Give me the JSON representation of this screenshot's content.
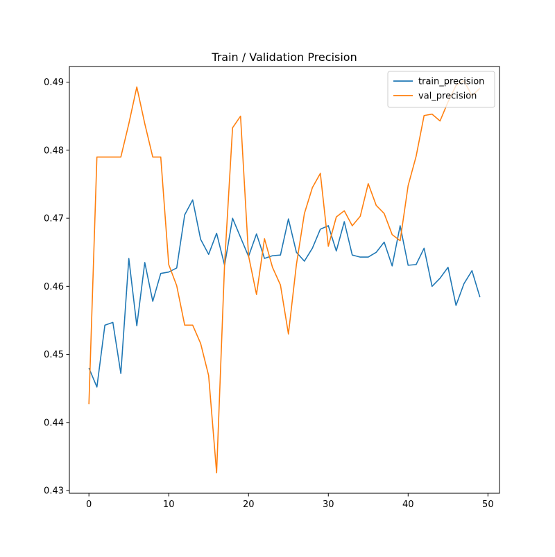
{
  "chart_data": {
    "type": "line",
    "title": "Train / Validation Precision",
    "xlabel": "",
    "ylabel": "",
    "xlim": [
      -2.45,
      51.45
    ],
    "ylim": [
      0.4296,
      0.4923
    ],
    "xticks": [
      0,
      10,
      20,
      30,
      40,
      50
    ],
    "xtick_labels": [
      "0",
      "10",
      "20",
      "30",
      "40",
      "50"
    ],
    "yticks": [
      0.43,
      0.44,
      0.45,
      0.46,
      0.47,
      0.48,
      0.49
    ],
    "ytick_labels": [
      "0.43",
      "0.44",
      "0.45",
      "0.46",
      "0.47",
      "0.48",
      "0.49"
    ],
    "grid": false,
    "legend_position": "upper right",
    "x": [
      0,
      1,
      2,
      3,
      4,
      5,
      6,
      7,
      8,
      9,
      10,
      11,
      12,
      13,
      14,
      15,
      16,
      17,
      18,
      19,
      20,
      21,
      22,
      23,
      24,
      25,
      26,
      27,
      28,
      29,
      30,
      31,
      32,
      33,
      34,
      35,
      36,
      37,
      38,
      39,
      40,
      41,
      42,
      43,
      44,
      45,
      46,
      47,
      48,
      49
    ],
    "series": [
      {
        "name": "train_precision",
        "color": "#1f77b4",
        "values": [
          0.448,
          0.4452,
          0.4543,
          0.4547,
          0.4472,
          0.4641,
          0.4542,
          0.4635,
          0.4578,
          0.4619,
          0.4621,
          0.4627,
          0.4705,
          0.4727,
          0.4669,
          0.4647,
          0.4678,
          0.4631,
          0.47,
          0.4672,
          0.4644,
          0.4677,
          0.4641,
          0.4645,
          0.4646,
          0.4699,
          0.465,
          0.4637,
          0.4656,
          0.4684,
          0.4689,
          0.4652,
          0.4695,
          0.4646,
          0.4643,
          0.4643,
          0.465,
          0.4665,
          0.463,
          0.4689,
          0.4631,
          0.4632,
          0.4656,
          0.46,
          0.4612,
          0.4628,
          0.4572,
          0.4604,
          0.4623,
          0.4584
        ]
      },
      {
        "name": "val_precision",
        "color": "#ff7f0e",
        "values": [
          0.4427,
          0.479,
          0.479,
          0.479,
          0.479,
          0.4839,
          0.4893,
          0.4839,
          0.479,
          0.479,
          0.4632,
          0.4601,
          0.4543,
          0.4543,
          0.4516,
          0.4469,
          0.4326,
          0.4633,
          0.4833,
          0.485,
          0.4645,
          0.4588,
          0.467,
          0.4628,
          0.4602,
          0.453,
          0.4632,
          0.4707,
          0.4745,
          0.4766,
          0.4659,
          0.4702,
          0.4711,
          0.4689,
          0.4703,
          0.4751,
          0.4719,
          0.4707,
          0.4676,
          0.4667,
          0.4748,
          0.4791,
          0.4851,
          0.4853,
          0.4843,
          0.4871,
          0.4895,
          0.4902,
          0.488,
          0.4891
        ]
      }
    ]
  }
}
